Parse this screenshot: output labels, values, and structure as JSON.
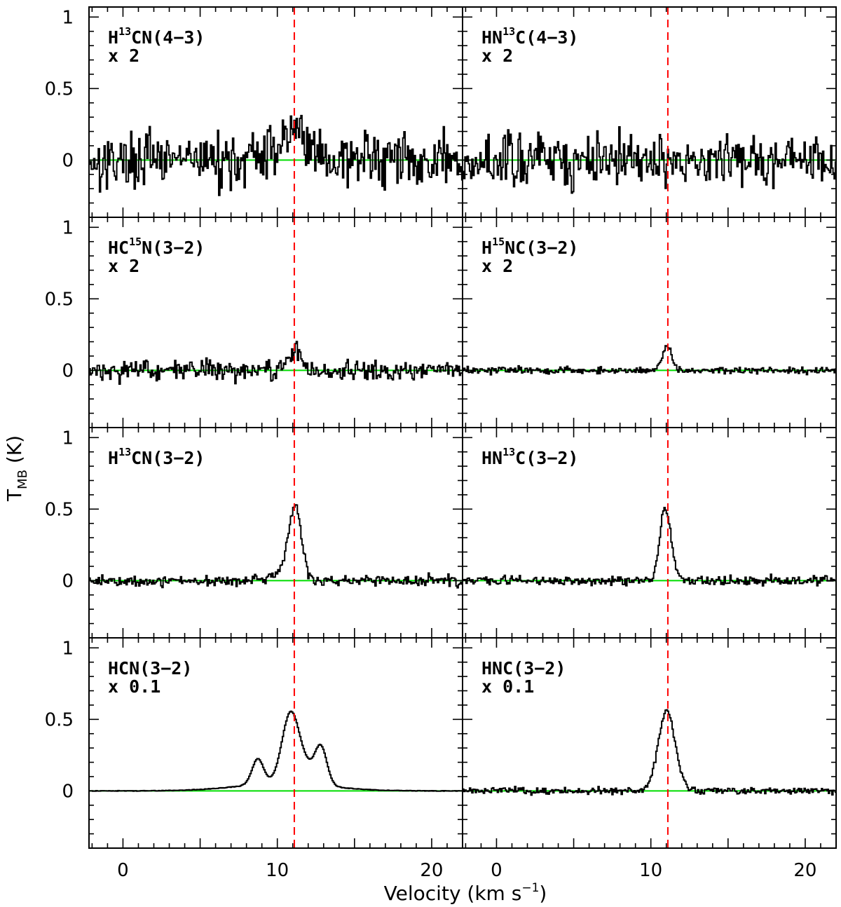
{
  "chart_data": {
    "type": "line",
    "layout": "4 rows x 2 columns, shared axes",
    "xlabel": "Velocity (km s",
    "xlabel_sup": "−1",
    "xlabel_close": ")",
    "ylabel_main": "T",
    "ylabel_sub": "MB",
    "ylabel_units": " (K)",
    "xlim": [
      -2.2,
      22
    ],
    "ylim": [
      -0.4,
      1.07
    ],
    "xticks": [
      0,
      10,
      20
    ],
    "xtick_labels": [
      "0",
      "10",
      "20"
    ],
    "yticks": [
      0,
      0.5,
      1
    ],
    "ytick_labels": [
      "0",
      "0.5",
      "1"
    ],
    "reference_velocity": 11.1,
    "colors": {
      "spectrum": "#000000",
      "baseline": "#00dd00",
      "reference_line": "#ff0000"
    },
    "panels": [
      {
        "row": 0,
        "col": 0,
        "label_pre": "H",
        "label_sup": "13",
        "label_post": "CN(4−3)",
        "scale": "x 2",
        "noise": 0.18,
        "lines": [
          {
            "v": 11.0,
            "amp": 0.22,
            "w": 0.9
          }
        ]
      },
      {
        "row": 0,
        "col": 1,
        "label_pre": "HN",
        "label_sup": "13",
        "label_post": "C(4−3)",
        "scale": "x 2",
        "noise": 0.18,
        "lines": []
      },
      {
        "row": 1,
        "col": 0,
        "label_pre": "HC",
        "label_sup": "15",
        "label_post": "N(3−2)",
        "scale": "x 2",
        "noise": 0.065,
        "lines": [
          {
            "v": 11.2,
            "amp": 0.16,
            "w": 0.35
          }
        ]
      },
      {
        "row": 1,
        "col": 1,
        "label_pre": "H",
        "label_sup": "15",
        "label_post": "NC(3−2)",
        "scale": "x 2",
        "noise": 0.022,
        "lines": [
          {
            "v": 11.0,
            "amp": 0.17,
            "w": 0.3
          }
        ]
      },
      {
        "row": 2,
        "col": 0,
        "label_pre": "H",
        "label_sup": "13",
        "label_post": "CN(3−2)",
        "scale": "",
        "noise": 0.035,
        "lines": [
          {
            "v": 11.1,
            "amp": 0.52,
            "w": 0.42
          },
          {
            "v": 9.9,
            "amp": 0.04,
            "w": 0.5
          }
        ]
      },
      {
        "row": 2,
        "col": 1,
        "label_pre": "HN",
        "label_sup": "13",
        "label_post": "C(3−2)",
        "scale": "",
        "noise": 0.03,
        "lines": [
          {
            "v": 10.8,
            "amp": 0.46,
            "w": 0.3
          },
          {
            "v": 11.3,
            "amp": 0.16,
            "w": 0.3
          }
        ]
      },
      {
        "row": 3,
        "col": 0,
        "label_pre": "HCN(3−2)",
        "label_sup": "",
        "label_post": "",
        "scale": "x 0.1",
        "noise": 0.0,
        "lines": [
          {
            "v": 8.7,
            "amp": 0.18,
            "w": 0.38
          },
          {
            "v": 10.8,
            "amp": 0.45,
            "w": 0.55
          },
          {
            "v": 12.8,
            "amp": 0.23,
            "w": 0.38
          },
          {
            "v": 11.8,
            "amp": 0.12,
            "w": 0.8
          },
          {
            "v": 10.3,
            "amp": 0.05,
            "w": 3.0
          }
        ]
      },
      {
        "row": 3,
        "col": 1,
        "label_pre": "HNC(3−2)",
        "label_sup": "",
        "label_post": "",
        "scale": "x 0.1",
        "noise": 0.022,
        "lines": [
          {
            "v": 11.0,
            "amp": 0.56,
            "w": 0.55
          }
        ]
      }
    ]
  }
}
